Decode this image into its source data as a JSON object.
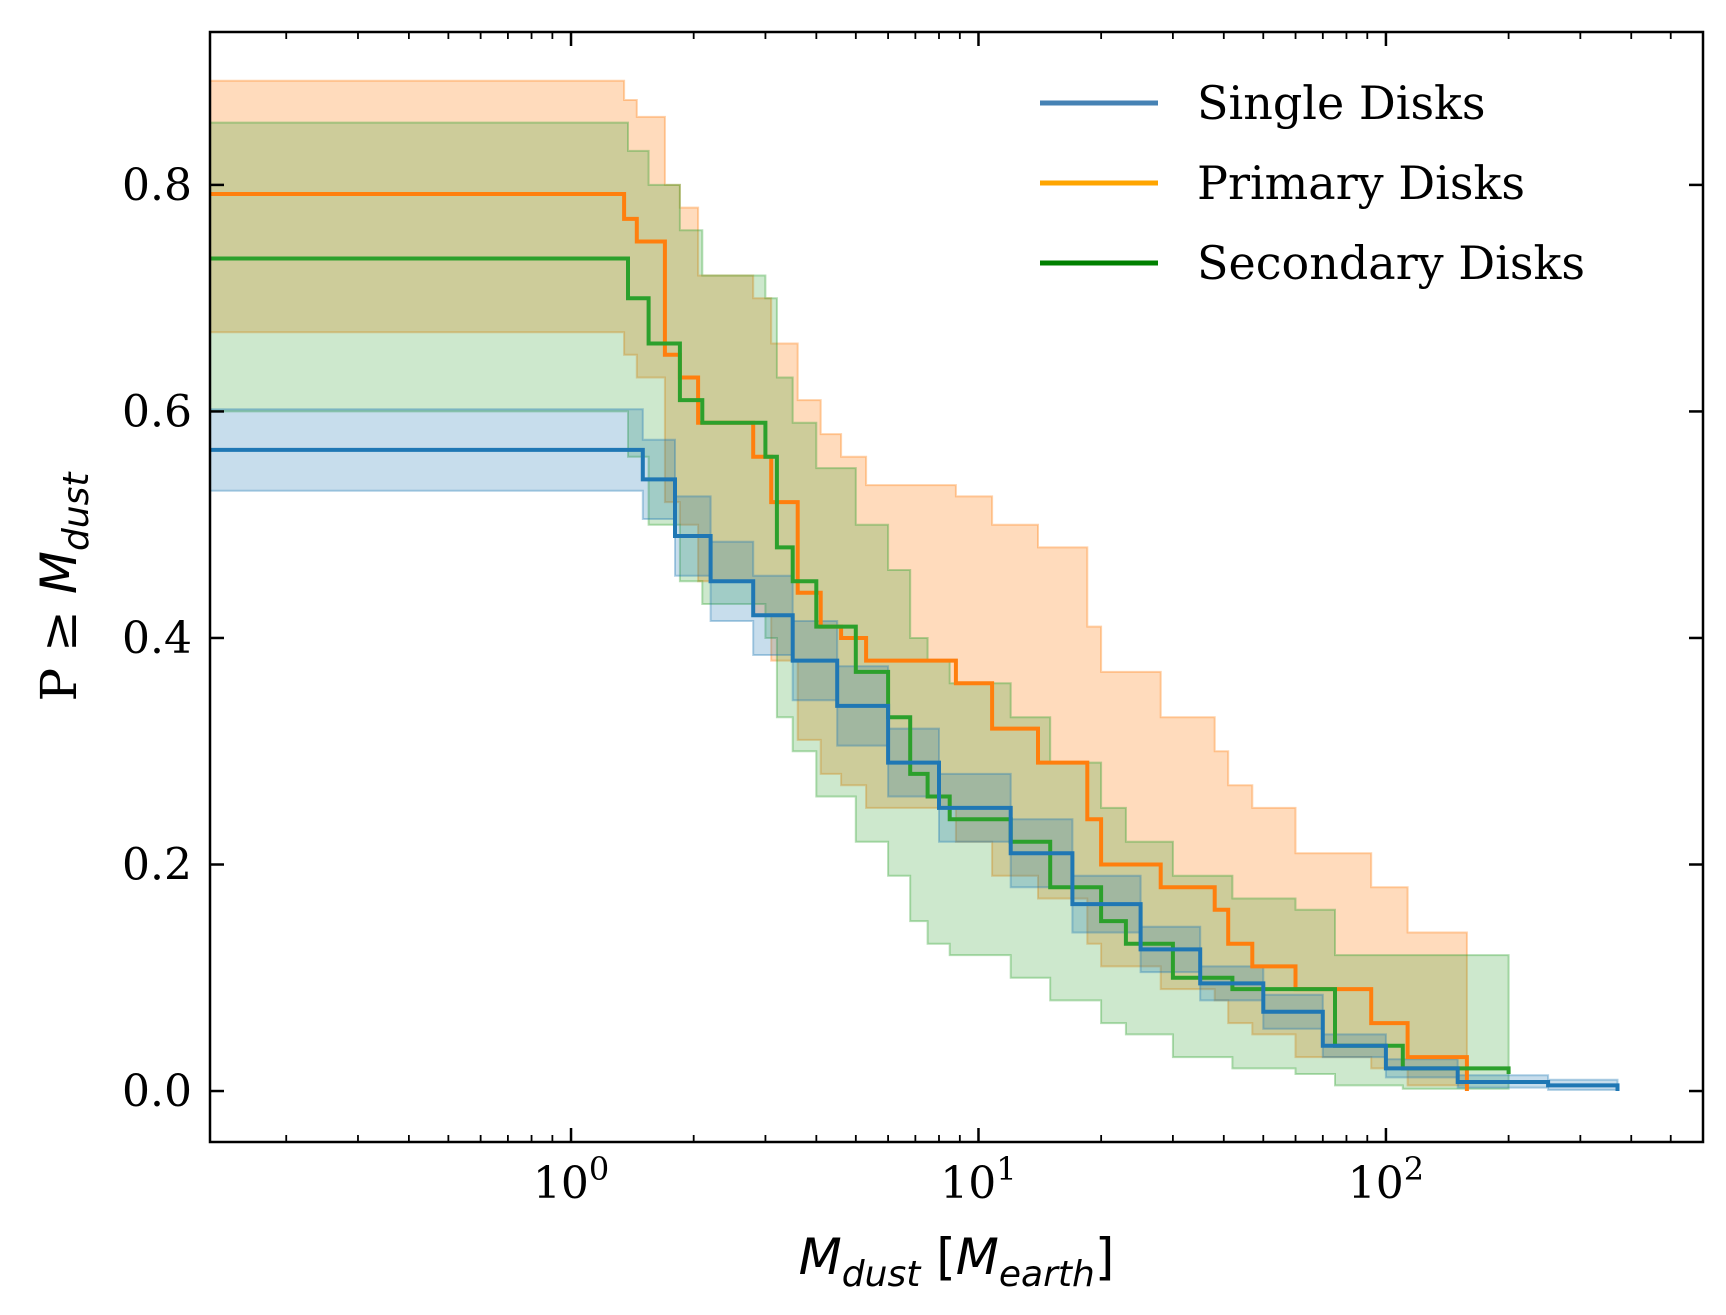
{
  "chart_data": {
    "type": "line",
    "title": "",
    "xscale": "log",
    "xlim": [
      0.13,
      600
    ],
    "ylim": [
      -0.045,
      0.935
    ],
    "xlabel": {
      "symbol": "M",
      "sub": "dust",
      "bracket_symbol": "M",
      "bracket_sub": "earth"
    },
    "ylabel": {
      "prefix": "P ≥ ",
      "symbol": "M",
      "sub": "dust"
    },
    "xticks": [
      {
        "value": 1,
        "base": "10",
        "exp": "0"
      },
      {
        "value": 10,
        "base": "10",
        "exp": "1"
      },
      {
        "value": 100,
        "base": "10",
        "exp": "2"
      }
    ],
    "yticks": [
      {
        "value": 0.0,
        "label": "0.0"
      },
      {
        "value": 0.2,
        "label": "0.2"
      },
      {
        "value": 0.4,
        "label": "0.4"
      },
      {
        "value": 0.6,
        "label": "0.6"
      },
      {
        "value": 0.8,
        "label": "0.8"
      }
    ],
    "legend_position": "top-right",
    "series": [
      {
        "name": "Primary Disks",
        "color": "#ff7f0e",
        "legend_color": "#ffa500",
        "band_opacity": 0.28,
        "x": [
          0.13,
          1.2,
          1.35,
          1.45,
          1.7,
          1.85,
          2.05,
          2.8,
          3.1,
          3.6,
          4.1,
          4.6,
          5.3,
          8.8,
          10.8,
          14,
          18.5,
          20,
          28,
          38,
          41,
          47,
          60,
          92,
          113,
          158
        ],
        "y": [
          0.792,
          0.792,
          0.77,
          0.75,
          0.65,
          0.63,
          0.59,
          0.56,
          0.52,
          0.44,
          0.41,
          0.4,
          0.38,
          0.36,
          0.32,
          0.29,
          0.24,
          0.2,
          0.18,
          0.16,
          0.13,
          0.11,
          0.09,
          0.06,
          0.03,
          0.0
        ],
        "upper": [
          0.892,
          0.892,
          0.875,
          0.86,
          0.8,
          0.78,
          0.72,
          0.7,
          0.66,
          0.61,
          0.58,
          0.56,
          0.535,
          0.525,
          0.5,
          0.48,
          0.41,
          0.37,
          0.33,
          0.3,
          0.27,
          0.25,
          0.21,
          0.18,
          0.14,
          0.12
        ],
        "lower": [
          0.67,
          0.67,
          0.65,
          0.63,
          0.52,
          0.5,
          0.45,
          0.42,
          0.38,
          0.31,
          0.28,
          0.27,
          0.25,
          0.22,
          0.19,
          0.17,
          0.13,
          0.11,
          0.09,
          0.08,
          0.06,
          0.05,
          0.03,
          0.02,
          0.005,
          0.0
        ]
      },
      {
        "name": "Secondary Disks",
        "color": "#2ca02c",
        "legend_color": "#008000",
        "band_opacity": 0.24,
        "x": [
          0.13,
          1.3,
          1.38,
          1.55,
          1.85,
          2.1,
          3.0,
          3.2,
          3.5,
          4.0,
          5.0,
          6.0,
          6.8,
          7.5,
          8.5,
          12,
          15,
          20,
          23,
          30,
          42,
          60,
          75,
          110,
          200
        ],
        "y": [
          0.735,
          0.735,
          0.7,
          0.66,
          0.61,
          0.59,
          0.56,
          0.48,
          0.45,
          0.41,
          0.37,
          0.33,
          0.28,
          0.26,
          0.24,
          0.22,
          0.18,
          0.15,
          0.13,
          0.1,
          0.09,
          0.09,
          0.04,
          0.02,
          0.015
        ],
        "upper": [
          0.855,
          0.855,
          0.83,
          0.8,
          0.76,
          0.72,
          0.7,
          0.63,
          0.59,
          0.55,
          0.5,
          0.46,
          0.4,
          0.38,
          0.36,
          0.33,
          0.29,
          0.25,
          0.22,
          0.19,
          0.17,
          0.16,
          0.12,
          0.12,
          0.12
        ],
        "lower": [
          0.6,
          0.6,
          0.56,
          0.5,
          0.45,
          0.43,
          0.4,
          0.33,
          0.3,
          0.26,
          0.22,
          0.19,
          0.15,
          0.13,
          0.12,
          0.1,
          0.08,
          0.06,
          0.05,
          0.03,
          0.02,
          0.015,
          0.005,
          0.002,
          0.002
        ]
      },
      {
        "name": "Single Disks",
        "color": "#1f77b4",
        "legend_color": "#4682b4",
        "band_opacity": 0.25,
        "x": [
          0.13,
          1.2,
          1.5,
          1.8,
          2.2,
          2.8,
          3.5,
          4.5,
          6.0,
          8.0,
          12,
          17,
          25,
          35,
          50,
          70,
          100,
          150,
          250,
          370
        ],
        "y": [
          0.566,
          0.566,
          0.54,
          0.49,
          0.45,
          0.42,
          0.38,
          0.34,
          0.29,
          0.25,
          0.21,
          0.165,
          0.125,
          0.095,
          0.07,
          0.04,
          0.02,
          0.008,
          0.005,
          0.0
        ],
        "upper": [
          0.602,
          0.602,
          0.575,
          0.525,
          0.485,
          0.455,
          0.415,
          0.375,
          0.32,
          0.28,
          0.24,
          0.19,
          0.145,
          0.11,
          0.085,
          0.05,
          0.028,
          0.014,
          0.01,
          0.008
        ],
        "lower": [
          0.53,
          0.53,
          0.505,
          0.455,
          0.415,
          0.385,
          0.345,
          0.305,
          0.26,
          0.22,
          0.18,
          0.14,
          0.105,
          0.08,
          0.055,
          0.03,
          0.012,
          0.003,
          0.001,
          0.0
        ]
      }
    ],
    "legend": [
      {
        "label": "Single Disks",
        "color": "#4682b4"
      },
      {
        "label": "Primary Disks",
        "color": "#ffa500"
      },
      {
        "label": "Secondary Disks",
        "color": "#008000"
      }
    ]
  }
}
